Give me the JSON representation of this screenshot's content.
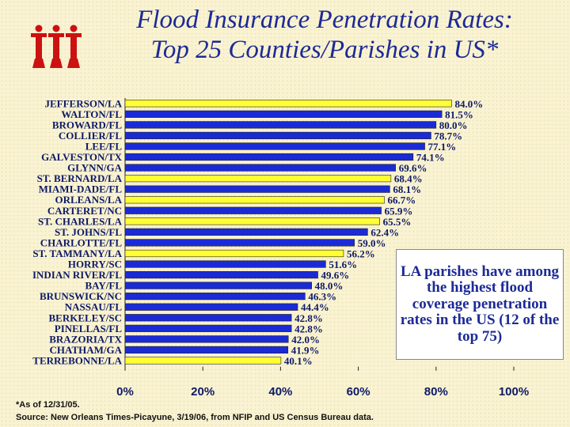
{
  "title_line1": "Flood Insurance Penetration Rates:",
  "title_line2": "Top 25 Counties/Parishes in US*",
  "logo": {
    "text": "iii",
    "color": "#cc1111"
  },
  "colors": {
    "highlight": "#ffff33",
    "bar": "#1a2bd6",
    "label": "#0d1a66",
    "text": "#111111"
  },
  "callout": "LA parishes have among the highest flood coverage penetration rates in the US (12 of the top 75)",
  "footnote": "*As of 12/31/05.",
  "source": "Source: New Orleans Times-Picayune, 3/19/06, from NFIP and US Census Bureau data.",
  "chart_data": {
    "type": "bar",
    "orientation": "horizontal",
    "title": "Flood Insurance Penetration Rates: Top 25 Counties/Parishes in US*",
    "xlabel": "",
    "ylabel": "",
    "xlim": [
      0,
      100
    ],
    "x_ticks": [
      "0%",
      "20%",
      "40%",
      "60%",
      "80%",
      "100%"
    ],
    "categories": [
      "JEFFERSON/LA",
      "WALTON/FL",
      "BROWARD/FL",
      "COLLIER/FL",
      "LEE/FL",
      "GALVESTON/TX",
      "GLYNN/GA",
      "ST. BERNARD/LA",
      "MIAMI-DADE/FL",
      "ORLEANS/LA",
      "CARTERET/NC",
      "ST. CHARLES/LA",
      "ST. JOHNS/FL",
      "CHARLOTTE/FL",
      "ST. TAMMANY/LA",
      "HORRY/SC",
      "INDIAN RIVER/FL",
      "BAY/FL",
      "BRUNSWICK/NC",
      "NASSAU/FL",
      "BERKELEY/SC",
      "PINELLAS/FL",
      "BRAZORIA/TX",
      "CHATHAM/GA",
      "TERREBONNE/LA"
    ],
    "values": [
      84.0,
      81.5,
      80.0,
      78.7,
      77.1,
      74.1,
      69.6,
      68.4,
      68.1,
      66.7,
      65.9,
      65.5,
      62.4,
      59.0,
      56.2,
      51.6,
      49.6,
      48.0,
      46.3,
      44.4,
      42.8,
      42.8,
      42.0,
      41.9,
      40.1
    ],
    "value_labels": [
      "84.0%",
      "81.5%",
      "80.0%",
      "78.7%",
      "77.1%",
      "74.1%",
      "69.6%",
      "68.4%",
      "68.1%",
      "66.7%",
      "65.9%",
      "65.5%",
      "62.4%",
      "59.0%",
      "56.2%",
      "51.6%",
      "49.6%",
      "48.0%",
      "46.3%",
      "44.4%",
      "42.8%",
      "42.8%",
      "42.0%",
      "41.9%",
      "40.1%"
    ],
    "highlighted": [
      "JEFFERSON/LA",
      "ST. BERNARD/LA",
      "ORLEANS/LA",
      "ST. CHARLES/LA",
      "ST. TAMMANY/LA",
      "TERREBONNE/LA"
    ]
  }
}
